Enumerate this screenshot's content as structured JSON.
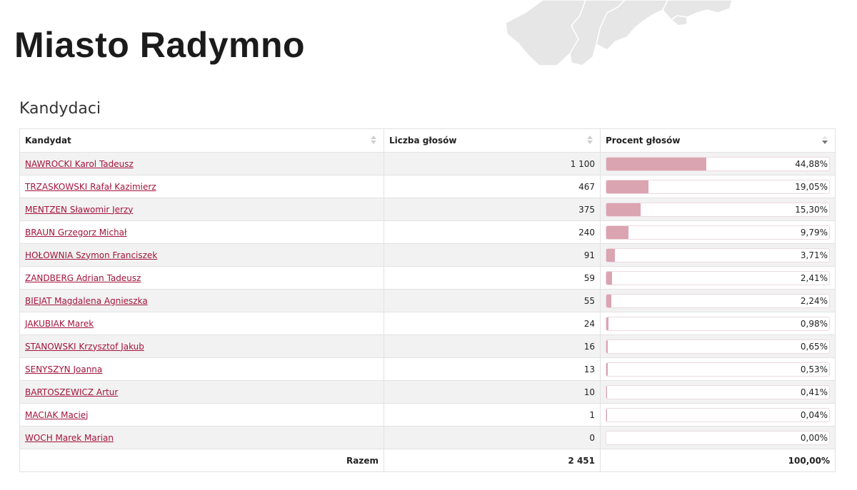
{
  "page": {
    "title": "Miasto Radymno",
    "section_title": "Kandydaci"
  },
  "table": {
    "headers": {
      "candidate": "Kandydat",
      "votes": "Liczba głosów",
      "percent": "Procent głosów"
    },
    "sort_column": "percent",
    "rows": [
      {
        "name": "NAWROCKI Karol Tadeusz",
        "votes": "1 100",
        "percent": "44,88%",
        "pct_value": 44.88
      },
      {
        "name": "TRZASKOWSKI Rafał Kazimierz",
        "votes": "467",
        "percent": "19,05%",
        "pct_value": 19.05
      },
      {
        "name": "MENTZEN Sławomir Jerzy",
        "votes": "375",
        "percent": "15,30%",
        "pct_value": 15.3
      },
      {
        "name": "BRAUN Grzegorz Michał",
        "votes": "240",
        "percent": "9,79%",
        "pct_value": 9.79
      },
      {
        "name": "HOŁOWNIA Szymon Franciszek",
        "votes": "91",
        "percent": "3,71%",
        "pct_value": 3.71
      },
      {
        "name": "ZANDBERG Adrian Tadeusz",
        "votes": "59",
        "percent": "2,41%",
        "pct_value": 2.41
      },
      {
        "name": "BIEJAT Magdalena Agnieszka",
        "votes": "55",
        "percent": "2,24%",
        "pct_value": 2.24
      },
      {
        "name": "JAKUBIAK Marek",
        "votes": "24",
        "percent": "0,98%",
        "pct_value": 0.98
      },
      {
        "name": "STANOWSKI Krzysztof Jakub",
        "votes": "16",
        "percent": "0,65%",
        "pct_value": 0.65
      },
      {
        "name": "SENYSZYN Joanna",
        "votes": "13",
        "percent": "0,53%",
        "pct_value": 0.53
      },
      {
        "name": "BARTOSZEWICZ Artur",
        "votes": "10",
        "percent": "0,41%",
        "pct_value": 0.41
      },
      {
        "name": "MACIAK Maciej",
        "votes": "1",
        "percent": "0,04%",
        "pct_value": 0.04
      },
      {
        "name": "WOCH Marek Marian",
        "votes": "0",
        "percent": "0,00%",
        "pct_value": 0.0
      }
    ],
    "footer": {
      "label": "Razem",
      "votes": "2 451",
      "percent": "100,00%"
    }
  },
  "colors": {
    "link": "#a3143c",
    "bar_fill": "#dba4b1",
    "row_stripe": "#f2f2f2",
    "map_fill": "#e6e6e6"
  }
}
